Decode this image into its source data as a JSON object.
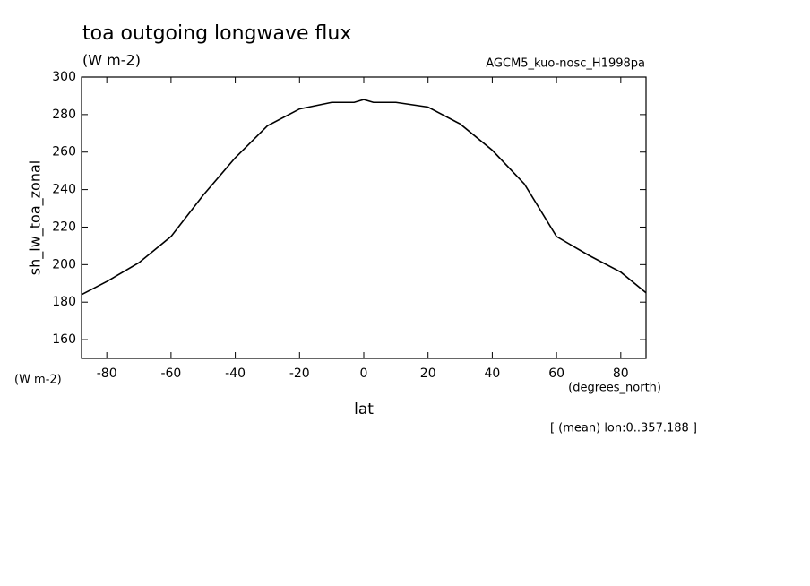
{
  "chart_data": {
    "type": "line",
    "title": "toa outgoing longwave flux",
    "subtitle": "(W m-2)",
    "dataset_label": "AGCM5_kuo-nosc_H1998pa",
    "y_label": "sh_lw_toa_zonal",
    "y_units": "(W m-2)",
    "x_label": "lat",
    "x_units": "(degrees_north)",
    "annotation": "[ (mean) lon:0..357.188 ]",
    "color": "#000000",
    "x": [
      -87.86,
      -80,
      -70,
      -60,
      -50,
      -40,
      -30,
      -20,
      -10,
      -3,
      0,
      3,
      10,
      20,
      30,
      40,
      50,
      60,
      70,
      80,
      87.86
    ],
    "values": [
      184,
      191,
      201,
      215,
      237,
      257,
      274,
      283,
      286.5,
      286.5,
      288,
      286.5,
      286.5,
      284,
      275,
      261,
      243,
      215,
      205,
      196,
      185
    ],
    "xlim": [
      -87.86,
      87.86
    ],
    "ylim": [
      150,
      300
    ],
    "xticks": [
      -80,
      -60,
      -40,
      -20,
      0,
      20,
      40,
      60,
      80
    ],
    "yticks": [
      160,
      180,
      200,
      220,
      240,
      260,
      280,
      300
    ]
  }
}
